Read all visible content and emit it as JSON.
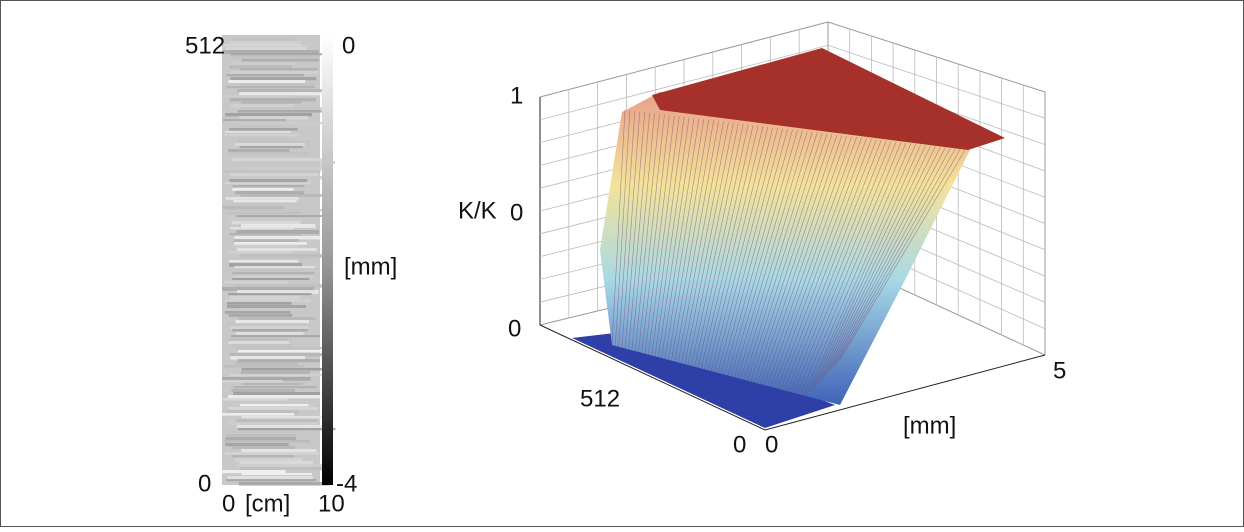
{
  "left_panel": {
    "y_top": "512",
    "y_bottom": "0",
    "x_left": "0",
    "x_unit": "[cm]",
    "x_right": "10",
    "colorbar": {
      "top": "0",
      "unit": "[mm]",
      "bottom": "-4"
    }
  },
  "right_panel": {
    "z_top": "1",
    "z_label": "K/K",
    "z_mid": "0",
    "z_bottom": "0",
    "y_far": "512",
    "y_near": "0",
    "x_near": "0",
    "x_far": "5",
    "x_unit": "[mm]"
  }
}
